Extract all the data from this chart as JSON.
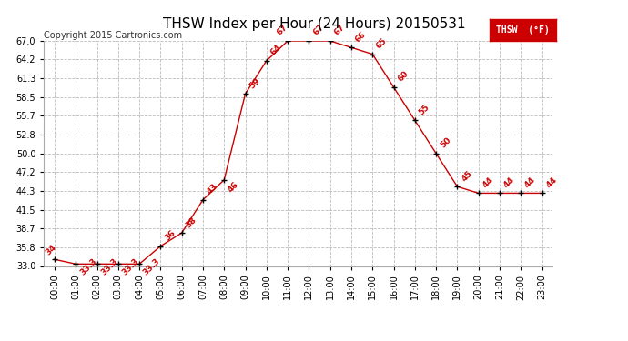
{
  "title": "THSW Index per Hour (24 Hours) 20150531",
  "copyright": "Copyright 2015 Cartronics.com",
  "legend_label": "THSW  (°F)",
  "hours": [
    0,
    1,
    2,
    3,
    4,
    5,
    6,
    7,
    8,
    9,
    10,
    11,
    12,
    13,
    14,
    15,
    16,
    17,
    18,
    19,
    20,
    21,
    22,
    23
  ],
  "values": [
    34,
    33.3,
    33.3,
    33.3,
    33.3,
    36,
    38,
    43,
    46,
    59,
    64,
    67,
    67,
    67,
    66,
    65,
    60,
    55,
    50,
    45,
    44,
    44,
    44,
    44
  ],
  "labels": [
    "34",
    "33.3",
    "33.3",
    "33.3",
    "33.3",
    "36",
    "38",
    "43",
    "46",
    "59",
    "64",
    "67",
    "67",
    "67",
    "66",
    "65",
    "60",
    "55",
    "50",
    "45",
    "44",
    "44",
    "44",
    "44"
  ],
  "ylim": [
    33.0,
    67.0
  ],
  "yticks": [
    33.0,
    35.8,
    38.7,
    41.5,
    44.3,
    47.2,
    50.0,
    52.8,
    55.7,
    58.5,
    61.3,
    64.2,
    67.0
  ],
  "line_color": "#cc0000",
  "marker_color": "#000000",
  "label_color": "#cc0000",
  "background_color": "#ffffff",
  "grid_color": "#bbbbbb",
  "title_fontsize": 11,
  "copyright_fontsize": 7,
  "tick_label_fontsize": 7,
  "data_label_fontsize": 6.5,
  "legend_bg": "#cc0000",
  "legend_fg": "#ffffff"
}
